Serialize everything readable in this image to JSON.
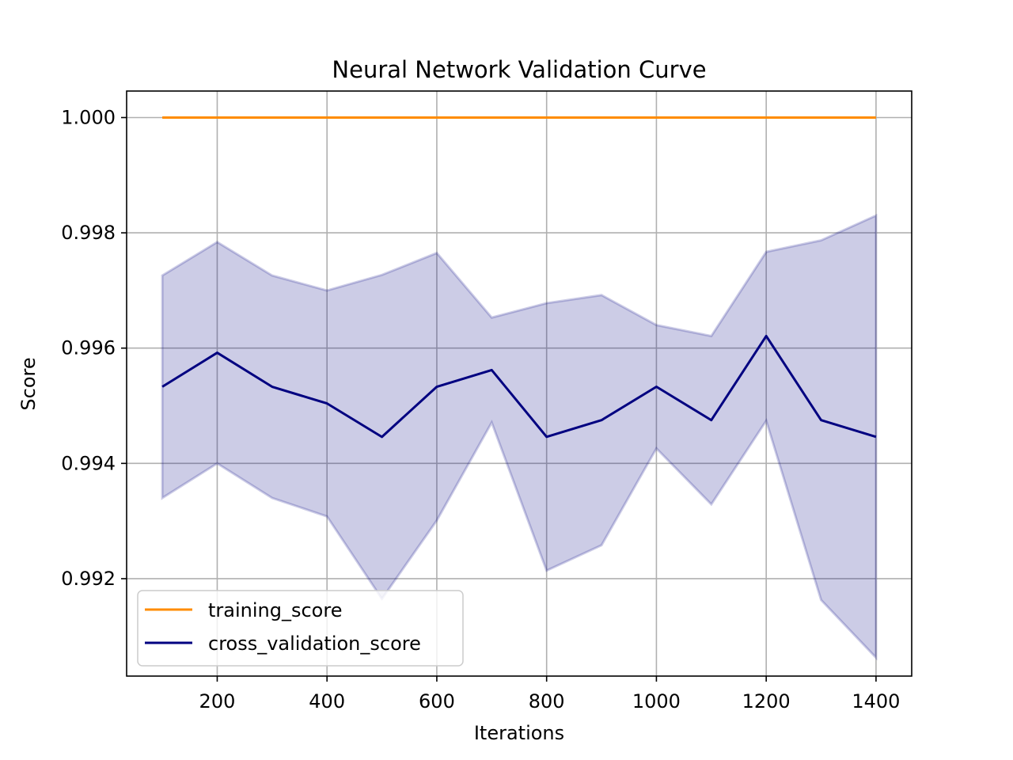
{
  "chart_data": {
    "type": "line",
    "title": "Neural Network Validation Curve",
    "xlabel": "Iterations",
    "ylabel": "Score",
    "x": [
      100,
      200,
      300,
      400,
      500,
      600,
      700,
      800,
      900,
      1000,
      1100,
      1200,
      1300,
      1400
    ],
    "xlim": [
      35,
      1465
    ],
    "ylim": [
      0.99031,
      1.00046
    ],
    "xticks": [
      200,
      400,
      600,
      800,
      1000,
      1200,
      1400
    ],
    "xtick_labels": [
      "200",
      "400",
      "600",
      "800",
      "1000",
      "1200",
      "1400"
    ],
    "yticks": [
      0.992,
      0.994,
      0.996,
      0.998,
      1.0
    ],
    "ytick_labels": [
      "0.992",
      "0.994",
      "0.996",
      "0.998",
      "1.000"
    ],
    "grid": true,
    "legend_position": "lower-left",
    "series": [
      {
        "name": "training_score",
        "color": "#ff8c00",
        "values": [
          1.0,
          1.0,
          1.0,
          1.0,
          1.0,
          1.0,
          1.0,
          1.0,
          1.0,
          1.0,
          1.0,
          1.0,
          1.0,
          1.0
        ]
      },
      {
        "name": "cross_validation_score",
        "color": "#000080",
        "values": [
          0.99533,
          0.99592,
          0.99533,
          0.99504,
          0.99446,
          0.99533,
          0.99562,
          0.99446,
          0.99475,
          0.99533,
          0.99475,
          0.99621,
          0.99475,
          0.99446
        ],
        "band": {
          "color": "#000080",
          "upper": [
            0.99726,
            0.99784,
            0.99726,
            0.997,
            0.99727,
            0.99765,
            0.99653,
            0.99678,
            0.99692,
            0.9964,
            0.99621,
            0.99767,
            0.99787,
            0.9983
          ],
          "lower": [
            0.9934,
            0.994,
            0.9934,
            0.99308,
            0.99165,
            0.99301,
            0.99471,
            0.99214,
            0.99258,
            0.99426,
            0.99329,
            0.99474,
            0.99163,
            0.99063
          ]
        }
      }
    ]
  }
}
